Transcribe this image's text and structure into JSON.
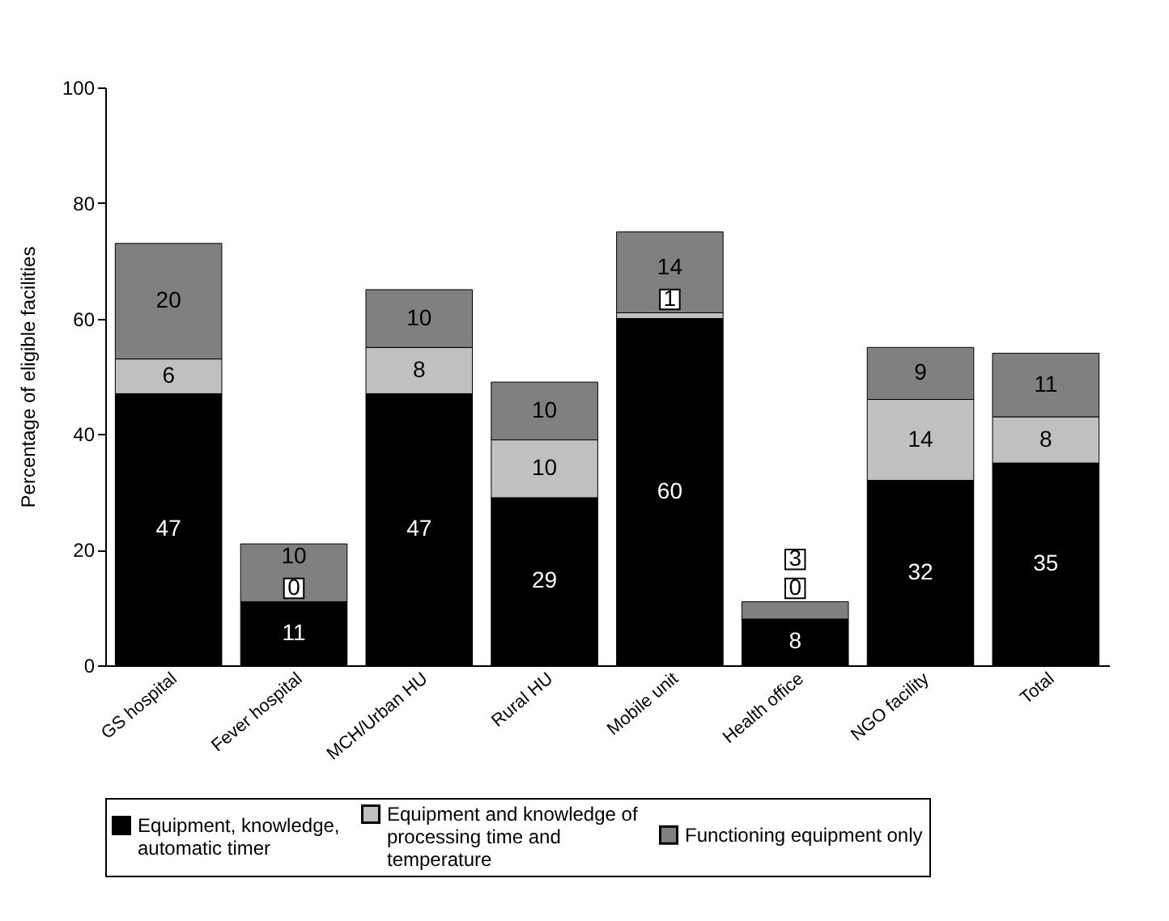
{
  "chart_data": {
    "type": "bar",
    "stacked": true,
    "ylabel": "Percentage of eligible facilities",
    "categories": [
      "GS hospital",
      "Fever hospital",
      "MCH/Urban HU",
      "Rural HU",
      "Mobile unit",
      "Health office",
      "NGO facility",
      "Total"
    ],
    "series": [
      {
        "name": "Equipment, knowledge, automatic timer",
        "color": "#000000",
        "values": [
          47,
          11,
          47,
          29,
          60,
          8,
          32,
          35
        ]
      },
      {
        "name": "Equipment and knowledge of processing time and temperature",
        "color": "#c0c0c0",
        "values": [
          6,
          0,
          8,
          10,
          1,
          0,
          14,
          8
        ]
      },
      {
        "name": "Functioning equipment only",
        "color": "#808080",
        "values": [
          20,
          10,
          10,
          10,
          14,
          3,
          9,
          11
        ]
      }
    ],
    "ylim": [
      0,
      100
    ],
    "yticks": [
      0,
      20,
      40,
      60,
      80,
      100
    ],
    "grid": false,
    "legend": "bottom",
    "data_labels": true
  }
}
